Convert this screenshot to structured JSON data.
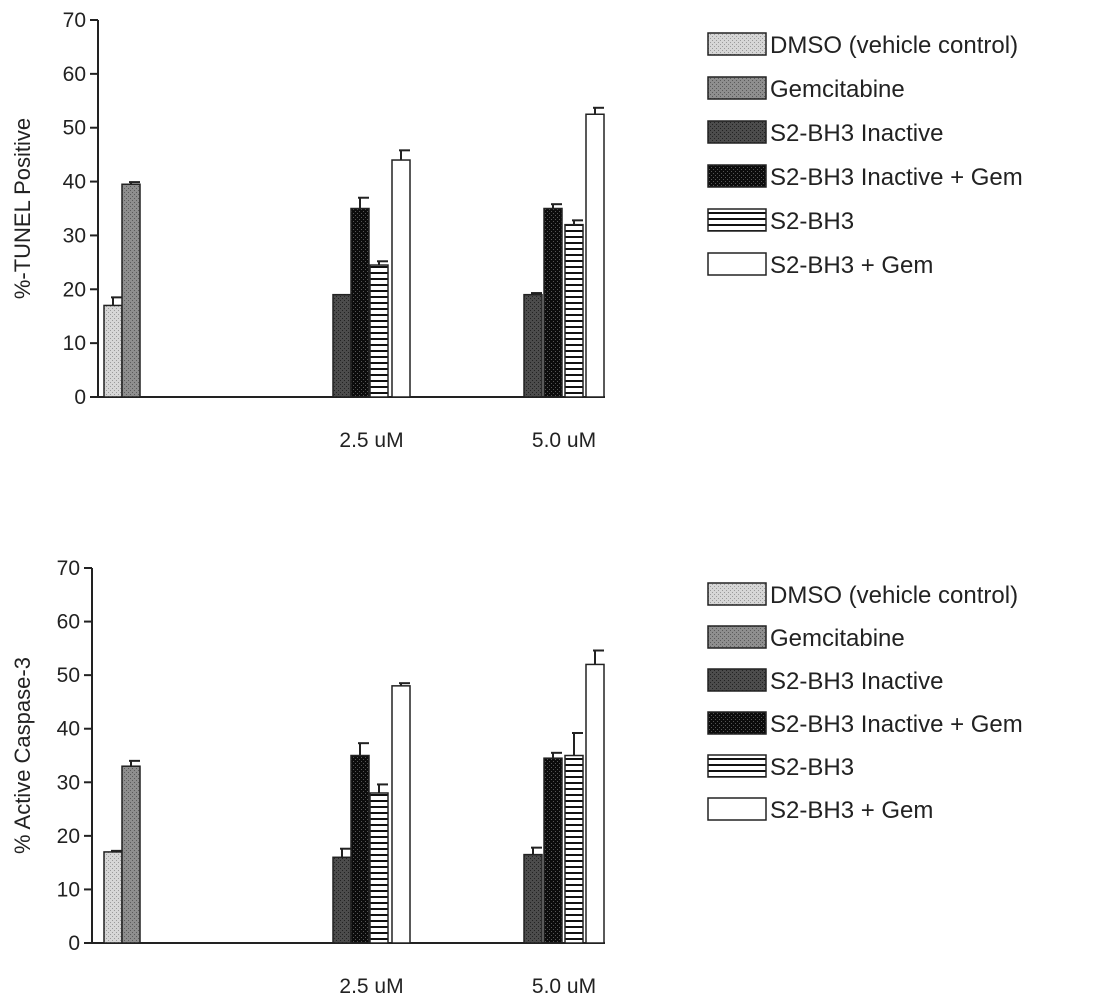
{
  "chart_data": [
    {
      "type": "bar",
      "ylabel": "%-TUNEL Positive",
      "ylim": [
        0,
        70
      ],
      "yticks": [
        0,
        10,
        20,
        30,
        40,
        50,
        60,
        70
      ],
      "groups": [
        {
          "label": "",
          "values": [
            {
              "series": 0,
              "value": 17,
              "err": 1.5
            },
            {
              "series": 1,
              "value": 39.5,
              "err": 0.4
            }
          ]
        },
        {
          "label": "2.5 uM",
          "values": [
            {
              "series": 2,
              "value": 19,
              "err": 0
            },
            {
              "series": 3,
              "value": 35,
              "err": 2
            },
            {
              "series": 4,
              "value": 24.5,
              "err": 0.7
            },
            {
              "series": 5,
              "value": 44,
              "err": 1.8
            }
          ]
        },
        {
          "label": "5.0 uM",
          "values": [
            {
              "series": 2,
              "value": 19,
              "err": 0.3
            },
            {
              "series": 3,
              "value": 35,
              "err": 0.8
            },
            {
              "series": 4,
              "value": 32,
              "err": 0.8
            },
            {
              "series": 5,
              "value": 52.5,
              "err": 1.2
            }
          ]
        }
      ],
      "series": [
        {
          "name": "DMSO (vehicle control)",
          "color": "#c8c8c8",
          "pattern": "stipple-light"
        },
        {
          "name": "Gemcitabine",
          "color": "#8a8a8a",
          "pattern": "stipple-mid"
        },
        {
          "name": "S2-BH3 Inactive",
          "color": "#4a4a4a",
          "pattern": "stipple-dark"
        },
        {
          "name": "S2-BH3 Inactive + Gem",
          "color": "#111111",
          "pattern": "stipple-black"
        },
        {
          "name": "S2-BH3",
          "color": "#ffffff",
          "pattern": "horizontal-lines"
        },
        {
          "name": "S2-BH3 + Gem",
          "color": "#ffffff",
          "pattern": "none"
        }
      ],
      "legend": "right"
    },
    {
      "type": "bar",
      "ylabel": "% Active Caspase-3",
      "ylim": [
        0,
        70
      ],
      "yticks": [
        0,
        10,
        20,
        30,
        40,
        50,
        60,
        70
      ],
      "groups": [
        {
          "label": "",
          "values": [
            {
              "series": 0,
              "value": 17,
              "err": 0.2
            },
            {
              "series": 1,
              "value": 33,
              "err": 1
            }
          ]
        },
        {
          "label": "2.5 uM",
          "values": [
            {
              "series": 2,
              "value": 16,
              "err": 1.6
            },
            {
              "series": 3,
              "value": 35,
              "err": 2.3
            },
            {
              "series": 4,
              "value": 28,
              "err": 1.6
            },
            {
              "series": 5,
              "value": 48,
              "err": 0.5
            }
          ]
        },
        {
          "label": "5.0 uM",
          "values": [
            {
              "series": 2,
              "value": 16.5,
              "err": 1.3
            },
            {
              "series": 3,
              "value": 34.5,
              "err": 1
            },
            {
              "series": 4,
              "value": 35,
              "err": 4.2
            },
            {
              "series": 5,
              "value": 52,
              "err": 2.6
            }
          ]
        }
      ],
      "series": [
        {
          "name": "DMSO (vehicle control)",
          "color": "#c8c8c8",
          "pattern": "stipple-light"
        },
        {
          "name": "Gemcitabine",
          "color": "#8a8a8a",
          "pattern": "stipple-mid"
        },
        {
          "name": "S2-BH3 Inactive",
          "color": "#4a4a4a",
          "pattern": "stipple-dark"
        },
        {
          "name": "S2-BH3 Inactive + Gem",
          "color": "#111111",
          "pattern": "stipple-black"
        },
        {
          "name": "S2-BH3",
          "color": "#ffffff",
          "pattern": "horizontal-lines"
        },
        {
          "name": "S2-BH3 + Gem",
          "color": "#ffffff",
          "pattern": "none"
        }
      ],
      "legend": "right"
    }
  ]
}
